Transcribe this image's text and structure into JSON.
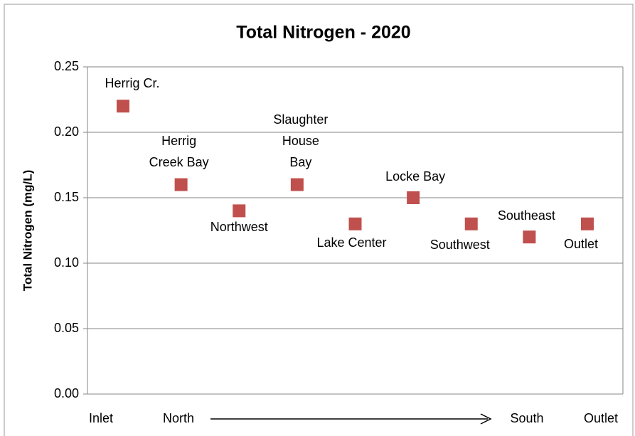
{
  "chart_data": {
    "type": "scatter",
    "title": "Total Nitrogen - 2020",
    "y_label": "Total Nitrogen (mg/L)",
    "categories": [
      "Herrig Cr.",
      "Herrig\nCreek Bay",
      "Northwest",
      "Slaughter\nHouse\nBay",
      "Lake Center",
      "Locke Bay",
      "Southwest",
      "Southeast",
      "Outlet"
    ],
    "values": [
      0.22,
      0.16,
      0.14,
      0.16,
      0.13,
      0.15,
      0.13,
      0.12,
      0.13
    ],
    "color": "#c0504d",
    "ylim": [
      0,
      0.25
    ],
    "yticks": [
      {
        "value": 0,
        "label": "0.00"
      },
      0.05,
      {
        "value": 0.1,
        "label": "0.10"
      },
      0.15,
      {
        "value": 0.2,
        "label": "0.20"
      },
      0.25
    ],
    "grid": true,
    "x_annotations": [
      "Inlet",
      "North",
      "South",
      "Outlet"
    ]
  }
}
